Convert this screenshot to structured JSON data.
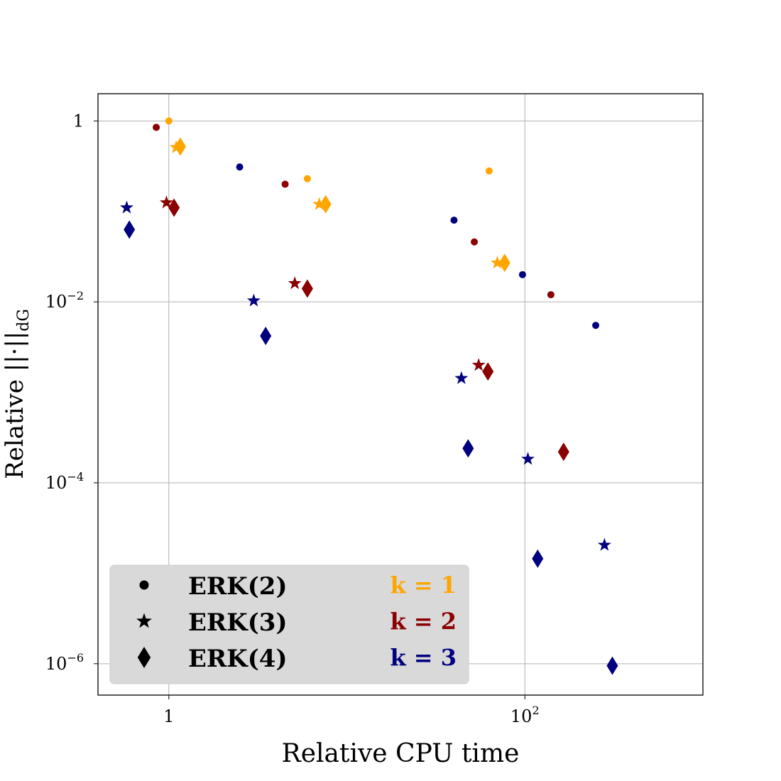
{
  "chart_data": {
    "type": "scatter",
    "xlabel": "Relative CPU time",
    "ylabel": "Relative ||·||dG",
    "x_scale": "log",
    "y_scale": "log",
    "xlim": [
      0.4,
      1000
    ],
    "ylim": [
      4.5e-07,
      2.0
    ],
    "grid": true,
    "x_ticks": [
      {
        "value": 1,
        "base": "1",
        "exp": ""
      },
      {
        "value": 100,
        "base": "10",
        "exp": "2"
      }
    ],
    "y_ticks": [
      {
        "value": 1,
        "base": "1",
        "exp": ""
      },
      {
        "value": 0.01,
        "base": "10",
        "exp": "−2"
      },
      {
        "value": 0.0001,
        "base": "10",
        "exp": "−4"
      },
      {
        "value": 1e-06,
        "base": "10",
        "exp": "−6"
      }
    ],
    "colors": {
      "k1": "#FFA500",
      "k2": "#8B0000",
      "k3": "#000080"
    },
    "series": [
      {
        "method": "ERK(2)",
        "marker": "circle",
        "k": 1,
        "color": "#FFA500",
        "points": [
          [
            1.0,
            1.0
          ],
          [
            6.0,
            0.23
          ],
          [
            63,
            0.28
          ]
        ]
      },
      {
        "method": "ERK(2)",
        "marker": "circle",
        "k": 2,
        "color": "#8B0000",
        "points": [
          [
            0.85,
            0.85
          ],
          [
            4.5,
            0.2
          ],
          [
            52,
            0.046
          ],
          [
            140,
            0.012
          ]
        ]
      },
      {
        "method": "ERK(2)",
        "marker": "circle",
        "k": 3,
        "color": "#000080",
        "points": [
          [
            2.5,
            0.31
          ],
          [
            40,
            0.08
          ],
          [
            97,
            0.02
          ],
          [
            250,
            0.0055
          ]
        ]
      },
      {
        "method": "ERK(3)",
        "marker": "star",
        "k": 1,
        "color": "#FFA500",
        "points": [
          [
            1.1,
            0.51
          ],
          [
            7.0,
            0.12
          ],
          [
            70,
            0.027
          ]
        ]
      },
      {
        "method": "ERK(3)",
        "marker": "star",
        "k": 2,
        "color": "#8B0000",
        "points": [
          [
            0.97,
            0.125
          ],
          [
            5.1,
            0.016
          ],
          [
            55,
            0.002
          ]
        ]
      },
      {
        "method": "ERK(3)",
        "marker": "star",
        "k": 3,
        "color": "#000080",
        "points": [
          [
            0.58,
            0.11
          ],
          [
            3.0,
            0.0103
          ],
          [
            44,
            0.00143
          ],
          [
            104,
            0.000183
          ]
        ]
      },
      {
        "method": "ERK(3)",
        "marker": "star",
        "k": 3,
        "color": "#000080",
        "points": [
          [
            280,
            2.05e-05
          ]
        ]
      },
      {
        "method": "ERK(4)",
        "marker": "diamond",
        "k": 1,
        "color": "#FFA500",
        "points": [
          [
            1.16,
            0.52
          ],
          [
            7.6,
            0.12
          ],
          [
            77,
            0.027
          ]
        ]
      },
      {
        "method": "ERK(4)",
        "marker": "diamond",
        "k": 2,
        "color": "#8B0000",
        "points": [
          [
            1.07,
            0.11
          ],
          [
            6.0,
            0.014
          ],
          [
            62,
            0.0017
          ],
          [
            165,
            0.00022
          ]
        ]
      },
      {
        "method": "ERK(4)",
        "marker": "diamond",
        "k": 3,
        "color": "#000080",
        "points": [
          [
            0.6,
            0.063
          ],
          [
            3.5,
            0.0042
          ],
          [
            48,
            0.00024
          ],
          [
            118,
            1.45e-05
          ],
          [
            310,
            9.5e-07
          ]
        ]
      }
    ],
    "legend": {
      "position": "lower-left",
      "methods": [
        {
          "marker": "circle",
          "label": "ERK(2)"
        },
        {
          "marker": "star",
          "label": "ERK(3)"
        },
        {
          "marker": "diamond",
          "label": "ERK(4)"
        }
      ],
      "k_labels": [
        {
          "label": "k = 1",
          "color": "#FFA500"
        },
        {
          "label": "k = 2",
          "color": "#8B0000"
        },
        {
          "label": "k = 3",
          "color": "#000080"
        }
      ]
    }
  }
}
